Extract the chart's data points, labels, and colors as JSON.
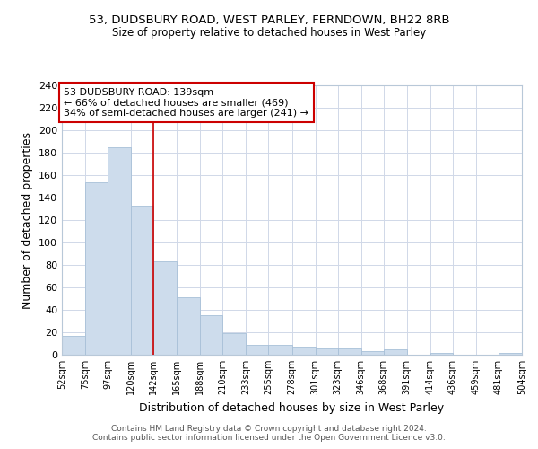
{
  "title1": "53, DUDSBURY ROAD, WEST PARLEY, FERNDOWN, BH22 8RB",
  "title2": "Size of property relative to detached houses in West Parley",
  "xlabel": "Distribution of detached houses by size in West Parley",
  "ylabel": "Number of detached properties",
  "bin_edges": [
    52,
    75,
    97,
    120,
    142,
    165,
    188,
    210,
    233,
    255,
    278,
    301,
    323,
    346,
    368,
    391,
    414,
    436,
    459,
    481,
    504
  ],
  "bar_heights": [
    17,
    154,
    185,
    133,
    83,
    51,
    35,
    19,
    9,
    9,
    7,
    6,
    6,
    3,
    5,
    0,
    2,
    0,
    0,
    2
  ],
  "bar_color": "#cddcec",
  "bar_edge_color": "#a8c0d8",
  "vline_x": 142,
  "vline_color": "#cc0000",
  "annotation_text": "53 DUDSBURY ROAD: 139sqm\n← 66% of detached houses are smaller (469)\n34% of semi-detached houses are larger (241) →",
  "annotation_box_color": "white",
  "annotation_box_edge_color": "#cc0000",
  "ylim": [
    0,
    240
  ],
  "yticks": [
    0,
    20,
    40,
    60,
    80,
    100,
    120,
    140,
    160,
    180,
    200,
    220,
    240
  ],
  "tick_labels": [
    "52sqm",
    "75sqm",
    "97sqm",
    "120sqm",
    "142sqm",
    "165sqm",
    "188sqm",
    "210sqm",
    "233sqm",
    "255sqm",
    "278sqm",
    "301sqm",
    "323sqm",
    "346sqm",
    "368sqm",
    "391sqm",
    "414sqm",
    "436sqm",
    "459sqm",
    "481sqm",
    "504sqm"
  ],
  "footer": "Contains HM Land Registry data © Crown copyright and database right 2024.\nContains public sector information licensed under the Open Government Licence v3.0.",
  "bg_color": "#ffffff",
  "plot_bg_color": "#ffffff",
  "grid_color": "#d0d8e8"
}
